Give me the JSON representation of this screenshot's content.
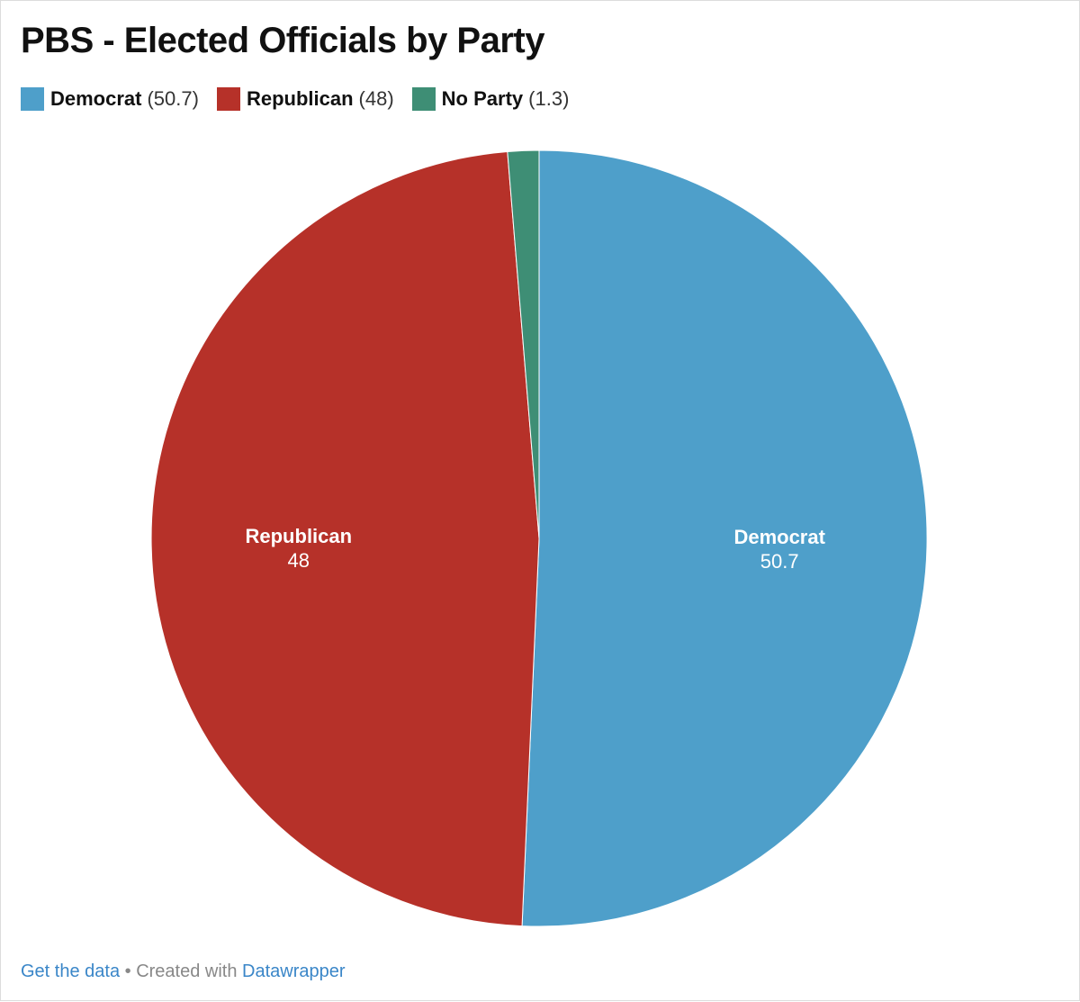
{
  "title": "PBS - Elected Officials by Party",
  "chart_data": {
    "type": "pie",
    "title": "PBS - Elected Officials by Party",
    "legend_position": "top-left",
    "slices": [
      {
        "name": "Democrat",
        "value": 50.7,
        "value_label": "50.7",
        "legend_value": "(50.7)",
        "color": "#4e9fca",
        "show_label": true
      },
      {
        "name": "Republican",
        "value": 48,
        "value_label": "48",
        "legend_value": "(48)",
        "color": "#b63129",
        "show_label": true
      },
      {
        "name": "No Party",
        "value": 1.3,
        "value_label": "1.3",
        "legend_value": "(1.3)",
        "color": "#3e8e75",
        "show_label": false
      }
    ]
  },
  "footer": {
    "get_data_link": "Get the data",
    "separator": " • Created with ",
    "datawrapper_link": "Datawrapper"
  },
  "colors": {
    "link": "#3a86c8",
    "footer_text": "#888888"
  }
}
